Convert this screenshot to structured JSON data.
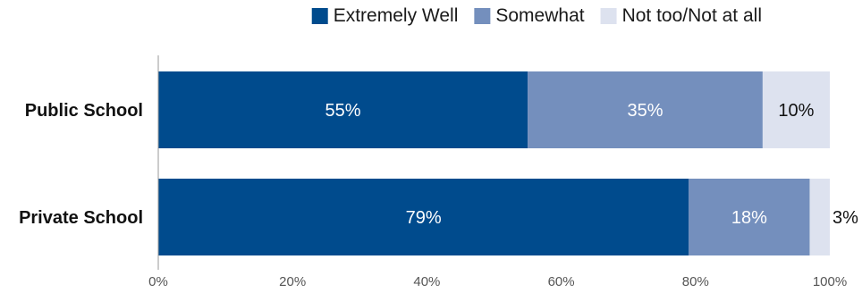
{
  "chart_data": {
    "type": "bar",
    "orientation": "horizontal",
    "stacked": true,
    "categories": [
      "Public School",
      "Private School"
    ],
    "series": [
      {
        "name": "Extremely Well",
        "values": [
          55,
          79
        ],
        "labels": [
          "55%",
          "79%"
        ],
        "color": "#004b8d",
        "label_color": "#ffffff"
      },
      {
        "name": "Somewhat",
        "values": [
          35,
          18
        ],
        "labels": [
          "35%",
          "18%"
        ],
        "color": "#748fbd",
        "label_color": "#ffffff"
      },
      {
        "name": "Not too/Not at all",
        "values": [
          10,
          3
        ],
        "labels": [
          "10%",
          "3%"
        ],
        "color": "#dde2ef",
        "label_color": "#111111"
      }
    ],
    "xlim": [
      0,
      100
    ],
    "xticks": [
      0,
      20,
      40,
      60,
      80,
      100
    ],
    "xtick_labels": [
      "0%",
      "20%",
      "40%",
      "60%",
      "80%",
      "100%"
    ],
    "grid": false,
    "legend_position": "top-right",
    "title": "",
    "xlabel": "",
    "ylabel": ""
  }
}
